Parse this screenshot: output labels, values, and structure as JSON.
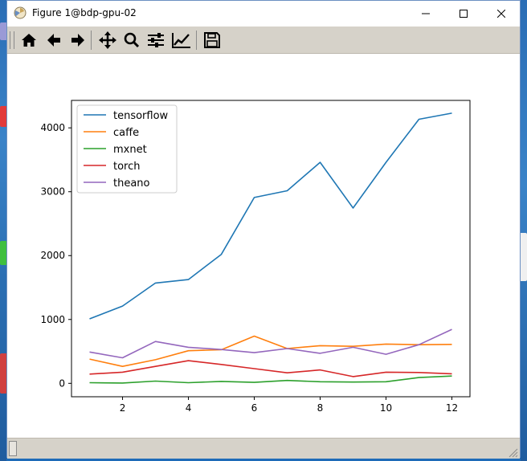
{
  "window": {
    "title": "Figure 1@bdp-gpu-02"
  },
  "toolbar": {
    "buttons": [
      {
        "name": "home-icon",
        "label": "Home"
      },
      {
        "name": "back-icon",
        "label": "Back"
      },
      {
        "name": "forward-icon",
        "label": "Forward"
      },
      {
        "name": "pan-icon",
        "label": "Pan"
      },
      {
        "name": "zoom-icon",
        "label": "Zoom"
      },
      {
        "name": "subplots-icon",
        "label": "Subplots"
      },
      {
        "name": "customize-icon",
        "label": "Customize"
      },
      {
        "name": "save-icon",
        "label": "Save"
      }
    ]
  },
  "colors": {
    "tensorflow": "#1f77b4",
    "caffe": "#ff7f0e",
    "mxnet": "#2ca02c",
    "torch": "#d62728",
    "theano": "#9467bd"
  },
  "chart_data": {
    "type": "line",
    "title": "",
    "xlabel": "",
    "ylabel": "",
    "x": [
      1,
      2,
      3,
      4,
      5,
      6,
      7,
      8,
      9,
      10,
      11,
      12
    ],
    "xticks": [
      "2",
      "4",
      "6",
      "8",
      "10",
      "12"
    ],
    "yticks": [
      "0",
      "1000",
      "2000",
      "3000",
      "4000"
    ],
    "xlim": [
      0.45,
      12.55
    ],
    "ylim": [
      -210,
      4430
    ],
    "grid": false,
    "legend_position": "top-left",
    "series": [
      {
        "name": "tensorflow",
        "values": [
          1010,
          1210,
          1570,
          1625,
          2020,
          2910,
          3015,
          3460,
          2745,
          3460,
          4135,
          4230
        ]
      },
      {
        "name": "caffe",
        "values": [
          380,
          265,
          370,
          510,
          525,
          740,
          545,
          590,
          580,
          615,
          605,
          610
        ]
      },
      {
        "name": "mxnet",
        "values": [
          10,
          5,
          35,
          10,
          30,
          15,
          45,
          25,
          20,
          25,
          90,
          115
        ]
      },
      {
        "name": "torch",
        "values": [
          145,
          175,
          265,
          355,
          295,
          230,
          165,
          210,
          105,
          175,
          170,
          150
        ]
      },
      {
        "name": "theano",
        "values": [
          490,
          400,
          655,
          565,
          530,
          480,
          545,
          470,
          565,
          455,
          605,
          845
        ]
      }
    ]
  }
}
